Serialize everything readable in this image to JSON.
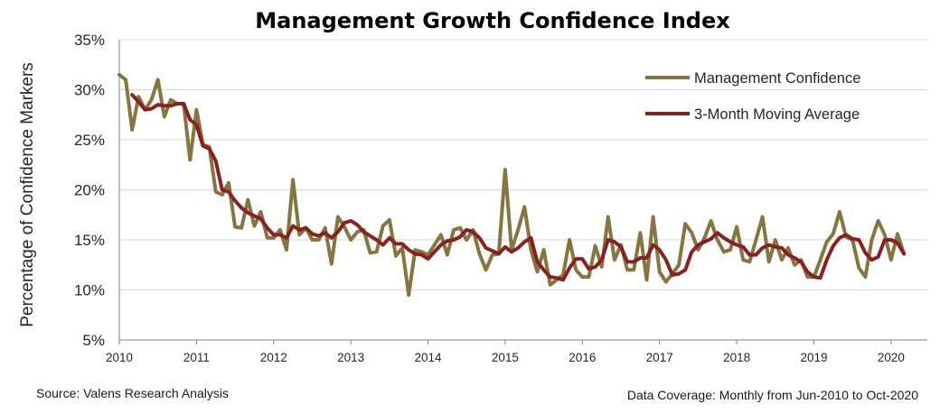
{
  "footer": {
    "source": "Source: Valens Research Analysis",
    "coverage": "Data Coverage:  Monthly from Jun-2010 to Oct-2020"
  },
  "chart_data": {
    "type": "line",
    "title": "Management Growth Confidence Index",
    "xlabel": "",
    "ylabel": "Percentage of Confidence Markers",
    "ylim": [
      5,
      35
    ],
    "xlim": [
      2010,
      2020.47
    ],
    "y_ticks": [
      "5%",
      "10%",
      "15%",
      "20%",
      "25%",
      "30%",
      "35%"
    ],
    "x_ticks": [
      "2010",
      "2011",
      "2012",
      "2013",
      "2014",
      "2015",
      "2016",
      "2017",
      "2018",
      "2019",
      "2020"
    ],
    "grid": "horizontal",
    "legend_position": "top-right",
    "x_start": 2010.0,
    "x_step_months": 1,
    "series": [
      {
        "name": "Management Confidence",
        "color": "#857640",
        "values": [
          31.5,
          31.0,
          26.0,
          29.3,
          28.0,
          29.0,
          31.0,
          27.3,
          29.0,
          28.6,
          28.6,
          23.0,
          28.0,
          24.5,
          24.3,
          19.8,
          19.5,
          20.7,
          16.3,
          16.2,
          19.0,
          16.4,
          17.8,
          15.2,
          15.2,
          16.0,
          14.0,
          21.0,
          15.5,
          16.2,
          15.0,
          15.0,
          16.2,
          12.6,
          17.3,
          16.3,
          15.0,
          15.8,
          16.0,
          13.7,
          13.8,
          16.4,
          17.0,
          13.4,
          14.2,
          9.5,
          14.0,
          13.8,
          13.5,
          14.5,
          15.5,
          13.5,
          16.0,
          16.2,
          15.0,
          16.0,
          13.6,
          12.0,
          13.5,
          13.6,
          22.0,
          14.0,
          16.0,
          18.3,
          14.0,
          11.8,
          14.0,
          10.5,
          11.0,
          11.5,
          15.0,
          12.0,
          11.3,
          11.3,
          14.4,
          12.3,
          17.3,
          13.0,
          14.5,
          12.0,
          12.0,
          15.7,
          11.0,
          17.3,
          11.8,
          10.8,
          11.6,
          12.5,
          16.6,
          15.7,
          14.0,
          15.2,
          16.9,
          15.0,
          13.8,
          14.0,
          16.3,
          13.0,
          12.8,
          15.0,
          17.3,
          12.8,
          15.0,
          13.0,
          14.2,
          12.5,
          13.0,
          11.3,
          11.3,
          13.0,
          14.8,
          15.6,
          17.8,
          15.3,
          15.0,
          12.2,
          11.3,
          15.0,
          16.9,
          15.5,
          13.0,
          15.6,
          13.6
        ]
      },
      {
        "name": "3-Month Moving Average",
        "color": "#8b2020",
        "values": [
          null,
          null,
          29.5,
          28.8,
          28.0,
          28.1,
          28.5,
          28.4,
          28.4,
          28.6,
          28.6,
          27.0,
          26.5,
          24.4,
          24.1,
          22.9,
          20.0,
          19.8,
          18.9,
          18.2,
          17.7,
          17.4,
          17.1,
          16.2,
          15.5,
          15.5,
          15.2,
          16.4,
          16.0,
          16.2,
          15.6,
          15.4,
          15.7,
          15.2,
          15.8,
          16.7,
          16.9,
          16.5,
          15.8,
          15.4,
          15.0,
          14.5,
          15.2,
          14.6,
          14.6,
          14.0,
          13.6,
          13.5,
          13.1,
          13.8,
          14.5,
          14.9,
          15.0,
          15.3,
          16.0,
          15.8,
          15.2,
          14.2,
          13.9,
          13.6,
          14.3,
          13.8,
          14.2,
          14.8,
          15.2,
          12.8,
          12.0,
          11.3,
          11.2,
          11.0,
          12.2,
          13.1,
          13.1,
          12.1,
          12.3,
          13.0,
          15.0,
          14.8,
          14.3,
          12.8,
          12.8,
          13.2,
          13.2,
          14.5,
          14.0,
          13.0,
          11.5,
          11.6,
          12.0,
          13.8,
          14.5,
          14.8,
          15.1,
          15.7,
          15.2,
          14.8,
          14.5,
          14.3,
          13.5,
          13.5,
          14.2,
          14.5,
          14.3,
          14.2,
          13.5,
          13.2,
          12.8,
          11.8,
          11.3,
          11.2,
          13.0,
          14.4,
          15.2,
          15.5,
          15.1,
          15.0,
          13.7,
          13.0,
          13.3,
          15.0,
          15.0,
          14.7,
          13.6
        ]
      }
    ]
  }
}
